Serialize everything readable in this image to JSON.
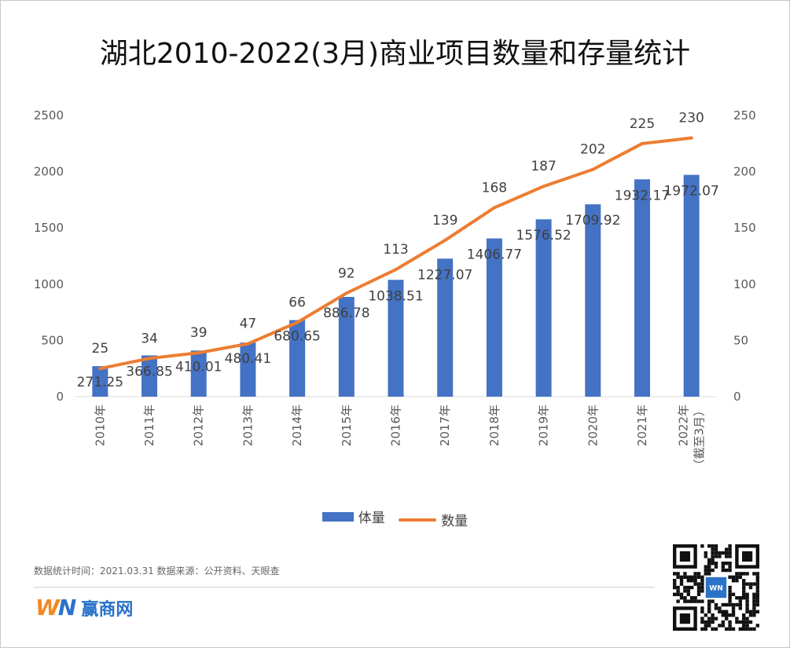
{
  "colors": {
    "bar": "#4472C4",
    "line": "#ED7D31",
    "axis": "#d9d9d9"
  },
  "chart_data": {
    "type": "bar+line",
    "title": "湖北2010-2022(3月)商业项目数量和存量统计",
    "categories": [
      "2010年",
      "2011年",
      "2012年",
      "2013年",
      "2014年",
      "2015年",
      "2016年",
      "2017年",
      "2018年",
      "2019年",
      "2020年",
      "2021年",
      "2022年\n（截至3月）"
    ],
    "series": [
      {
        "name": "体量",
        "type": "bar",
        "axis": "left",
        "values": [
          271.25,
          366.85,
          410.01,
          480.41,
          680.65,
          886.78,
          1038.51,
          1227.07,
          1406.77,
          1576.52,
          1709.92,
          1932.17,
          1972.07
        ]
      },
      {
        "name": "数量",
        "type": "line",
        "axis": "right",
        "values": [
          25,
          34,
          39,
          47,
          66,
          92,
          113,
          139,
          168,
          187,
          202,
          225,
          230
        ]
      }
    ],
    "y_left": {
      "range": [
        0,
        2500
      ],
      "ticks": [
        "0",
        "500",
        "1000",
        "1500",
        "2000",
        "2500"
      ]
    },
    "y_right": {
      "range": [
        0,
        250
      ],
      "ticks": [
        "0",
        "50",
        "100",
        "150",
        "200",
        "250"
      ]
    },
    "grid": false,
    "legend": "bottom"
  },
  "footer": {
    "note": "数据统计时间：2021.03.31  数据来源：公开资料、天眼查",
    "brand_mark": "WN",
    "brand_name": "赢商网",
    "qr_label": "WN"
  }
}
